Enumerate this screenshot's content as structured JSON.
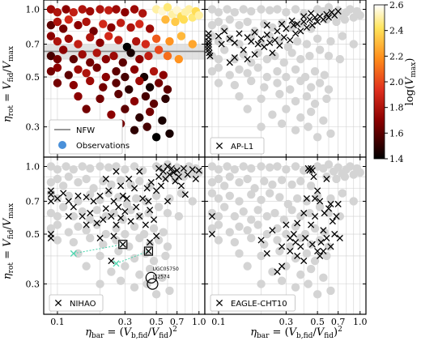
{
  "chart_data": {
    "type": "scatter",
    "layout": "2x2 panels, shared axes",
    "x_scale": "log",
    "y_scale": "log",
    "xlim": [
      0.08,
      1.1
    ],
    "ylim": [
      0.22,
      1.1
    ],
    "x_ticks": [
      0.1,
      0.3,
      0.5,
      0.7,
      1.0
    ],
    "x_tick_labels": [
      "0.1",
      "0.3",
      "0.5",
      "0.7",
      "1.0"
    ],
    "y_ticks": [
      0.3,
      0.5,
      0.7,
      1.0
    ],
    "y_tick_labels": [
      "0.3",
      "0.5",
      "0.7",
      "1.0"
    ],
    "xlabel": "η_bar = (V_b,fid/V_fid)^2",
    "xlabel_main": "η",
    "xlabel_sub": "bar",
    "xlabel_eq": " = (",
    "xlabel_v": "V",
    "xlabel_vsub": "b,fid",
    "xlabel_slash": "/",
    "xlabel_v2": "V",
    "xlabel_v2sub": "fid",
    "xlabel_close": ")",
    "xlabel_pow": "2",
    "ylabel": "η_rot = V_fid/V_max",
    "ylabel_main": "η",
    "ylabel_sub": "rot",
    "ylabel_eq": " = ",
    "ylabel_v": "V",
    "ylabel_vsub": "fid",
    "ylabel_slash": "/",
    "ylabel_v2": "V",
    "ylabel_v2sub": "max",
    "grid": true,
    "colorbar": {
      "label_main": "log(",
      "label_v": "V",
      "label_sub": "max",
      "label_close": ")",
      "range": [
        1.4,
        2.6
      ],
      "ticks": [
        1.4,
        1.6,
        1.8,
        2.0,
        2.2,
        2.4,
        2.6
      ],
      "tick_labels": [
        "1.4",
        "1.6",
        "1.8",
        "2.0",
        "2.2",
        "2.4",
        "2.6"
      ],
      "colormap": "hot"
    },
    "nfw_band": {
      "y": 0.65,
      "y_low": 0.6,
      "y_high": 0.7,
      "line_color": "#888888",
      "band_color": "#d9d9d9"
    },
    "panels": [
      {
        "legend": [
          "NFW",
          "Observations"
        ],
        "legend_colors": [
          "#888888",
          "#4a90d9"
        ]
      },
      {
        "legend": [
          "AP-L1"
        ]
      },
      {
        "legend": [
          "NIHAO"
        ],
        "annotations": [
          "UGC05750",
          "IC2574"
        ]
      },
      {
        "legend": [
          "EAGLE-CHT10"
        ]
      }
    ],
    "observations": [
      [
        0.09,
        1.0,
        1.75
      ],
      [
        0.1,
        0.97,
        1.8
      ],
      [
        0.115,
        1.0,
        1.7
      ],
      [
        0.13,
        0.97,
        1.85
      ],
      [
        0.15,
        1.0,
        1.8
      ],
      [
        0.17,
        0.98,
        1.75
      ],
      [
        0.2,
        1.0,
        1.8
      ],
      [
        0.23,
        0.99,
        1.85
      ],
      [
        0.26,
        1.0,
        1.75
      ],
      [
        0.3,
        0.97,
        1.7
      ],
      [
        0.35,
        1.0,
        1.75
      ],
      [
        0.4,
        0.96,
        1.8
      ],
      [
        0.5,
        1.0,
        2.5
      ],
      [
        0.55,
        0.98,
        2.55
      ],
      [
        0.6,
        1.02,
        2.45
      ],
      [
        0.65,
        0.95,
        2.5
      ],
      [
        0.7,
        0.99,
        2.55
      ],
      [
        0.75,
        0.93,
        2.4
      ],
      [
        0.8,
        0.97,
        2.5
      ],
      [
        0.85,
        1.0,
        2.5
      ],
      [
        0.9,
        0.92,
        2.45
      ],
      [
        0.95,
        0.98,
        2.4
      ],
      [
        1.0,
        0.94,
        2.5
      ],
      [
        0.68,
        0.88,
        2.35
      ],
      [
        0.78,
        0.9,
        2.4
      ],
      [
        0.58,
        0.9,
        2.3
      ],
      [
        0.09,
        0.85,
        1.6
      ],
      [
        0.1,
        0.88,
        1.8
      ],
      [
        0.11,
        0.82,
        1.65
      ],
      [
        0.12,
        0.9,
        1.9
      ],
      [
        0.14,
        0.85,
        1.7
      ],
      [
        0.16,
        0.88,
        1.8
      ],
      [
        0.18,
        0.8,
        1.65
      ],
      [
        0.21,
        0.86,
        1.9
      ],
      [
        0.24,
        0.83,
        1.7
      ],
      [
        0.28,
        0.87,
        1.85
      ],
      [
        0.33,
        0.83,
        1.8
      ],
      [
        0.38,
        0.86,
        1.9
      ],
      [
        0.45,
        0.82,
        1.75
      ],
      [
        0.09,
        0.76,
        1.7
      ],
      [
        0.1,
        0.72,
        1.8
      ],
      [
        0.12,
        0.74,
        1.75
      ],
      [
        0.14,
        0.7,
        1.85
      ],
      [
        0.17,
        0.75,
        1.8
      ],
      [
        0.2,
        0.71,
        1.7
      ],
      [
        0.23,
        0.76,
        1.9
      ],
      [
        0.27,
        0.73,
        1.85
      ],
      [
        0.31,
        0.68,
        1.4
      ],
      [
        0.36,
        0.72,
        1.8
      ],
      [
        0.42,
        0.7,
        1.9
      ],
      [
        0.5,
        0.74,
        2.05
      ],
      [
        0.62,
        0.72,
        2.2
      ],
      [
        0.75,
        0.76,
        2.3
      ],
      [
        0.9,
        0.7,
        2.25
      ],
      [
        0.09,
        0.62,
        1.55
      ],
      [
        0.1,
        0.6,
        1.65
      ],
      [
        0.11,
        0.66,
        1.7
      ],
      [
        0.13,
        0.6,
        1.6
      ],
      [
        0.15,
        0.63,
        1.75
      ],
      [
        0.17,
        0.58,
        1.65
      ],
      [
        0.19,
        0.64,
        1.8
      ],
      [
        0.22,
        0.6,
        1.7
      ],
      [
        0.25,
        0.62,
        1.75
      ],
      [
        0.29,
        0.58,
        1.6
      ],
      [
        0.33,
        0.64,
        1.45
      ],
      [
        0.38,
        0.6,
        1.7
      ],
      [
        0.44,
        0.62,
        1.85
      ],
      [
        0.52,
        0.66,
        2.0
      ],
      [
        0.6,
        0.62,
        2.1
      ],
      [
        0.72,
        0.6,
        2.2
      ],
      [
        0.09,
        0.53,
        1.65
      ],
      [
        0.1,
        0.55,
        1.7
      ],
      [
        0.12,
        0.51,
        1.6
      ],
      [
        0.14,
        0.54,
        1.75
      ],
      [
        0.16,
        0.52,
        1.8
      ],
      [
        0.19,
        0.55,
        1.65
      ],
      [
        0.22,
        0.5,
        1.7
      ],
      [
        0.26,
        0.53,
        1.6
      ],
      [
        0.3,
        0.5,
        1.55
      ],
      [
        0.35,
        0.54,
        1.7
      ],
      [
        0.41,
        0.5,
        1.45
      ],
      [
        0.48,
        0.53,
        1.8
      ],
      [
        0.56,
        0.51,
        1.7
      ],
      [
        0.1,
        0.47,
        1.65
      ],
      [
        0.13,
        0.46,
        1.7
      ],
      [
        0.17,
        0.48,
        1.75
      ],
      [
        0.21,
        0.45,
        1.65
      ],
      [
        0.26,
        0.47,
        1.6
      ],
      [
        0.32,
        0.44,
        1.5
      ],
      [
        0.38,
        0.48,
        1.75
      ],
      [
        0.45,
        0.45,
        1.45
      ],
      [
        0.52,
        0.47,
        1.65
      ],
      [
        0.6,
        0.44,
        1.6
      ],
      [
        0.14,
        0.41,
        1.7
      ],
      [
        0.2,
        0.4,
        1.65
      ],
      [
        0.27,
        0.42,
        1.6
      ],
      [
        0.35,
        0.39,
        1.7
      ],
      [
        0.42,
        0.41,
        1.55
      ],
      [
        0.48,
        0.38,
        1.6
      ],
      [
        0.58,
        0.4,
        1.5
      ],
      [
        0.16,
        0.36,
        1.65
      ],
      [
        0.24,
        0.34,
        1.7
      ],
      [
        0.3,
        0.36,
        1.6
      ],
      [
        0.38,
        0.33,
        1.5
      ],
      [
        0.45,
        0.35,
        1.65
      ],
      [
        0.55,
        0.32,
        1.45
      ],
      [
        0.2,
        0.3,
        1.6
      ],
      [
        0.28,
        0.31,
        1.65
      ],
      [
        0.35,
        0.29,
        1.5
      ],
      [
        0.43,
        0.3,
        1.55
      ],
      [
        0.5,
        0.27,
        1.4
      ],
      [
        0.62,
        0.28,
        1.45
      ]
    ],
    "ap_l1": [
      [
        0.085,
        0.78
      ],
      [
        0.085,
        0.75
      ],
      [
        0.085,
        0.72
      ],
      [
        0.085,
        0.7
      ],
      [
        0.085,
        0.68
      ],
      [
        0.085,
        0.66
      ],
      [
        0.086,
        0.64
      ],
      [
        0.087,
        0.62
      ],
      [
        0.1,
        0.76
      ],
      [
        0.105,
        0.7
      ],
      [
        0.11,
        0.8
      ],
      [
        0.12,
        0.74
      ],
      [
        0.13,
        0.71
      ],
      [
        0.14,
        0.78
      ],
      [
        0.15,
        0.66
      ],
      [
        0.16,
        0.75
      ],
      [
        0.17,
        0.72
      ],
      [
        0.18,
        0.79
      ],
      [
        0.19,
        0.7
      ],
      [
        0.2,
        0.74
      ],
      [
        0.21,
        0.68
      ],
      [
        0.22,
        0.77
      ],
      [
        0.23,
        0.71
      ],
      [
        0.24,
        0.64
      ],
      [
        0.25,
        0.73
      ],
      [
        0.26,
        0.8
      ],
      [
        0.27,
        0.69
      ],
      [
        0.29,
        0.75
      ],
      [
        0.3,
        0.82
      ],
      [
        0.32,
        0.73
      ],
      [
        0.34,
        0.85
      ],
      [
        0.35,
        0.78
      ],
      [
        0.36,
        0.86
      ],
      [
        0.38,
        0.8
      ],
      [
        0.4,
        0.88
      ],
      [
        0.42,
        0.83
      ],
      [
        0.44,
        0.9
      ],
      [
        0.46,
        0.85
      ],
      [
        0.48,
        0.92
      ],
      [
        0.5,
        0.88
      ],
      [
        0.52,
        0.93
      ],
      [
        0.55,
        0.9
      ],
      [
        0.58,
        0.95
      ],
      [
        0.6,
        0.92
      ],
      [
        0.63,
        0.97
      ],
      [
        0.66,
        0.94
      ],
      [
        0.7,
        0.98
      ],
      [
        0.45,
        0.96
      ],
      [
        0.4,
        0.93
      ],
      [
        0.33,
        0.89
      ],
      [
        0.28,
        0.86
      ],
      [
        0.22,
        0.85
      ],
      [
        0.13,
        0.61
      ],
      [
        0.16,
        0.6
      ],
      [
        0.12,
        0.58
      ],
      [
        0.18,
        0.63
      ]
    ],
    "nihao": [
      [
        0.09,
        0.78
      ],
      [
        0.09,
        0.75
      ],
      [
        0.09,
        0.7
      ],
      [
        0.09,
        0.5
      ],
      [
        0.09,
        0.48
      ],
      [
        0.1,
        0.72
      ],
      [
        0.11,
        0.76
      ],
      [
        0.12,
        0.7
      ],
      [
        0.13,
        0.66
      ],
      [
        0.14,
        0.74
      ],
      [
        0.15,
        0.6
      ],
      [
        0.16,
        0.73
      ],
      [
        0.17,
        0.62
      ],
      [
        0.18,
        0.7
      ],
      [
        0.19,
        0.56
      ],
      [
        0.2,
        0.74
      ],
      [
        0.21,
        0.58
      ],
      [
        0.22,
        0.65
      ],
      [
        0.23,
        0.78
      ],
      [
        0.24,
        0.6
      ],
      [
        0.25,
        0.7
      ],
      [
        0.26,
        0.55
      ],
      [
        0.27,
        0.66
      ],
      [
        0.28,
        0.59
      ],
      [
        0.29,
        0.74
      ],
      [
        0.3,
        0.63
      ],
      [
        0.31,
        0.72
      ],
      [
        0.33,
        0.57
      ],
      [
        0.35,
        0.8
      ],
      [
        0.36,
        0.66
      ],
      [
        0.38,
        0.6
      ],
      [
        0.4,
        0.72
      ],
      [
        0.42,
        0.55
      ],
      [
        0.43,
        0.8
      ],
      [
        0.44,
        0.7
      ],
      [
        0.45,
        0.64
      ],
      [
        0.46,
        0.85
      ],
      [
        0.48,
        0.58
      ],
      [
        0.5,
        0.78
      ],
      [
        0.52,
        0.9
      ],
      [
        0.54,
        0.82
      ],
      [
        0.56,
        0.95
      ],
      [
        0.58,
        0.88
      ],
      [
        0.6,
        1.0
      ],
      [
        0.62,
        0.92
      ],
      [
        0.64,
        0.98
      ],
      [
        0.66,
        0.94
      ],
      [
        0.68,
        0.86
      ],
      [
        0.7,
        0.96
      ],
      [
        0.72,
        0.9
      ],
      [
        0.75,
        0.82
      ],
      [
        0.78,
        0.98
      ],
      [
        0.8,
        0.75
      ],
      [
        0.83,
        0.92
      ],
      [
        0.9,
        0.97
      ],
      [
        0.95,
        0.88
      ],
      [
        1.0,
        0.96
      ],
      [
        0.52,
        0.98
      ],
      [
        0.38,
        0.95
      ],
      [
        0.32,
        0.88
      ],
      [
        0.26,
        0.95
      ],
      [
        0.28,
        0.82
      ],
      [
        0.22,
        0.88
      ],
      [
        0.5,
        0.49
      ],
      [
        0.45,
        0.46
      ],
      [
        0.6,
        0.7
      ],
      [
        0.2,
        0.48
      ],
      [
        0.25,
        0.49
      ],
      [
        0.12,
        0.6
      ],
      [
        0.16,
        0.55
      ],
      [
        0.24,
        0.38
      ]
    ],
    "nihao_boxed": [
      [
        0.29,
        0.45
      ],
      [
        0.44,
        0.42
      ]
    ],
    "nihao_cyan_paths": [
      [
        [
          0.13,
          0.41
        ],
        [
          0.29,
          0.45
        ]
      ],
      [
        [
          0.26,
          0.37
        ],
        [
          0.44,
          0.42
        ]
      ]
    ],
    "nihao_circles": [
      [
        0.46,
        0.32
      ],
      [
        0.47,
        0.3
      ]
    ],
    "eagle": [
      [
        0.09,
        0.6
      ],
      [
        0.09,
        0.5
      ],
      [
        0.2,
        0.47
      ],
      [
        0.22,
        0.41
      ],
      [
        0.26,
        0.34
      ],
      [
        0.28,
        0.36
      ],
      [
        0.3,
        0.55
      ],
      [
        0.32,
        0.48
      ],
      [
        0.34,
        0.5
      ],
      [
        0.36,
        0.56
      ],
      [
        0.38,
        0.44
      ],
      [
        0.4,
        0.62
      ],
      [
        0.41,
        0.48
      ],
      [
        0.42,
        0.72
      ],
      [
        0.43,
        0.98
      ],
      [
        0.44,
        0.96
      ],
      [
        0.45,
        0.98
      ],
      [
        0.46,
        0.96
      ],
      [
        0.47,
        0.9
      ],
      [
        0.48,
        0.6
      ],
      [
        0.5,
        0.78
      ],
      [
        0.52,
        0.7
      ],
      [
        0.53,
        0.46
      ],
      [
        0.55,
        0.52
      ],
      [
        0.56,
        0.62
      ],
      [
        0.58,
        0.88
      ],
      [
        0.6,
        0.65
      ],
      [
        0.62,
        0.44
      ],
      [
        0.64,
        0.57
      ],
      [
        0.66,
        0.5
      ],
      [
        0.68,
        0.6
      ],
      [
        0.7,
        0.68
      ],
      [
        0.72,
        0.48
      ],
      [
        0.36,
        0.4
      ],
      [
        0.32,
        0.42
      ],
      [
        0.28,
        0.44
      ],
      [
        0.24,
        0.52
      ],
      [
        0.45,
        0.55
      ],
      [
        0.5,
        0.42
      ],
      [
        0.55,
        0.42
      ],
      [
        0.52,
        0.4
      ],
      [
        0.58,
        0.48
      ],
      [
        0.46,
        0.45
      ],
      [
        0.62,
        0.68
      ],
      [
        0.48,
        0.72
      ],
      [
        0.4,
        0.38
      ],
      [
        0.35,
        0.46
      ]
    ]
  }
}
